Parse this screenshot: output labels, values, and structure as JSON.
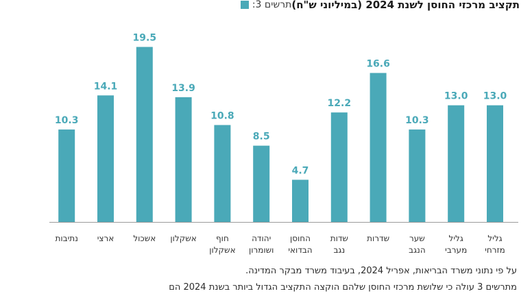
{
  "title": {
    "prefix": "תרשים 3:",
    "main": "תקציב מרכזי החוסן לשנת 2024 (במיליוני ש\"ח)"
  },
  "colors": {
    "bar": "#4aa9b8",
    "label": "#4aa9b8",
    "axis": "#9a9a9a"
  },
  "chart_data": {
    "type": "bar",
    "categories": [
      [
        "גליל",
        "מזרחי"
      ],
      [
        "גליל",
        "מערבי"
      ],
      [
        "שער",
        "הנגב"
      ],
      [
        "שדרות"
      ],
      [
        "שדות",
        "נגב"
      ],
      [
        "החוסן",
        "הבדואי"
      ],
      [
        "יהודה",
        "ושומרון"
      ],
      [
        "חוף",
        "אשקלון"
      ],
      [
        "אשקלון"
      ],
      [
        "אשכול"
      ],
      [
        "ארצי"
      ],
      [
        "נתיבות"
      ]
    ],
    "values": [
      13.0,
      13.0,
      10.3,
      16.6,
      12.2,
      4.7,
      8.5,
      10.8,
      13.9,
      19.5,
      14.1,
      10.3
    ],
    "value_labels": [
      "13.0",
      "13.0",
      "10.3",
      "16.6",
      "12.2",
      "4.7",
      "8.5",
      "10.8",
      "13.9",
      "19.5",
      "14.1",
      "10.3"
    ],
    "ylim": [
      0,
      21.6
    ],
    "order": "right-to-left",
    "grid": false
  },
  "source_note": "על פי נתוני משרד הבריאות, אפריל 2024, בעיבוד משרד מבקר המדינה.",
  "body_text": "מתרשים 3 עולה כי שלושת מרכזי החוסן שלהם הוקצה התקציב הגדול ביותר בשנת 2024 הם"
}
